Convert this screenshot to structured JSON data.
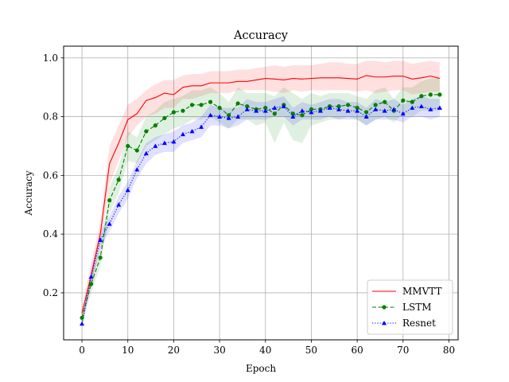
{
  "chart_data": {
    "type": "line",
    "title": "Accuracy",
    "xlabel": "Epoch",
    "ylabel": "Accuracy",
    "xlim": [
      -4,
      82
    ],
    "ylim": [
      0.04,
      1.04
    ],
    "xticks": [
      0,
      10,
      20,
      30,
      40,
      50,
      60,
      70,
      80
    ],
    "yticks": [
      0.2,
      0.4,
      0.6,
      0.8,
      1.0
    ],
    "xtick_labels": [
      "0",
      "10",
      "20",
      "30",
      "40",
      "50",
      "60",
      "70",
      "80"
    ],
    "ytick_labels": [
      "0.2",
      "0.4",
      "0.6",
      "0.8",
      "1.0"
    ],
    "grid": true,
    "legend_position": "lower-right",
    "x": [
      0,
      2,
      4,
      6,
      8,
      10,
      12,
      14,
      16,
      18,
      20,
      22,
      24,
      26,
      28,
      30,
      32,
      34,
      36,
      38,
      40,
      42,
      44,
      46,
      48,
      50,
      52,
      54,
      56,
      58,
      60,
      62,
      64,
      66,
      68,
      70,
      72,
      74,
      76,
      78
    ],
    "series": [
      {
        "name": "MMVTT",
        "color": "#ff0000",
        "linestyle": "solid",
        "marker": "none",
        "values": [
          0.13,
          0.26,
          0.4,
          0.64,
          0.71,
          0.79,
          0.81,
          0.855,
          0.865,
          0.88,
          0.875,
          0.9,
          0.905,
          0.905,
          0.915,
          0.915,
          0.915,
          0.92,
          0.92,
          0.925,
          0.93,
          0.928,
          0.925,
          0.93,
          0.928,
          0.93,
          0.932,
          0.932,
          0.932,
          0.93,
          0.928,
          0.94,
          0.935,
          0.935,
          0.938,
          0.938,
          0.928,
          0.932,
          0.938,
          0.93
        ],
        "lower": [
          0.11,
          0.22,
          0.36,
          0.57,
          0.65,
          0.73,
          0.77,
          0.8,
          0.81,
          0.83,
          0.83,
          0.86,
          0.86,
          0.87,
          0.88,
          0.88,
          0.88,
          0.89,
          0.89,
          0.89,
          0.89,
          0.885,
          0.88,
          0.89,
          0.885,
          0.89,
          0.89,
          0.89,
          0.89,
          0.89,
          0.885,
          0.89,
          0.88,
          0.885,
          0.89,
          0.89,
          0.875,
          0.88,
          0.885,
          0.885
        ],
        "upper": [
          0.15,
          0.3,
          0.44,
          0.7,
          0.77,
          0.84,
          0.86,
          0.89,
          0.91,
          0.925,
          0.925,
          0.94,
          0.945,
          0.945,
          0.955,
          0.955,
          0.955,
          0.96,
          0.96,
          0.965,
          0.97,
          0.975,
          0.97,
          0.975,
          0.975,
          0.975,
          0.98,
          0.985,
          0.985,
          0.98,
          0.98,
          0.99,
          0.99,
          0.985,
          0.99,
          0.99,
          0.98,
          0.985,
          0.99,
          0.985
        ]
      },
      {
        "name": "LSTM",
        "color": "#008000",
        "linestyle": "dashed",
        "marker": "circle",
        "values": [
          0.115,
          0.23,
          0.32,
          0.515,
          0.585,
          0.7,
          0.685,
          0.75,
          0.77,
          0.795,
          0.815,
          0.82,
          0.84,
          0.84,
          0.85,
          0.83,
          0.805,
          0.845,
          0.835,
          0.825,
          0.83,
          0.81,
          0.84,
          0.81,
          0.805,
          0.825,
          0.825,
          0.835,
          0.835,
          0.84,
          0.83,
          0.815,
          0.84,
          0.85,
          0.82,
          0.855,
          0.85,
          0.87,
          0.875,
          0.875
        ],
        "lower": [
          0.09,
          0.2,
          0.29,
          0.47,
          0.54,
          0.65,
          0.64,
          0.7,
          0.72,
          0.74,
          0.76,
          0.77,
          0.79,
          0.79,
          0.8,
          0.78,
          0.76,
          0.79,
          0.79,
          0.77,
          0.78,
          0.71,
          0.78,
          0.72,
          0.71,
          0.77,
          0.78,
          0.79,
          0.79,
          0.8,
          0.79,
          0.77,
          0.79,
          0.8,
          0.78,
          0.81,
          0.8,
          0.82,
          0.82,
          0.82
        ],
        "upper": [
          0.14,
          0.26,
          0.35,
          0.56,
          0.63,
          0.75,
          0.73,
          0.8,
          0.82,
          0.85,
          0.86,
          0.87,
          0.89,
          0.89,
          0.9,
          0.88,
          0.85,
          0.9,
          0.88,
          0.88,
          0.88,
          0.87,
          0.9,
          0.88,
          0.86,
          0.88,
          0.87,
          0.88,
          0.88,
          0.88,
          0.87,
          0.86,
          0.89,
          0.9,
          0.86,
          0.9,
          0.9,
          0.92,
          0.93,
          0.93
        ]
      },
      {
        "name": "Resnet",
        "color": "#0000ff",
        "linestyle": "dotted",
        "marker": "triangle",
        "values": [
          0.095,
          0.255,
          0.38,
          0.435,
          0.5,
          0.55,
          0.62,
          0.675,
          0.7,
          0.71,
          0.715,
          0.74,
          0.75,
          0.765,
          0.805,
          0.8,
          0.795,
          0.8,
          0.825,
          0.82,
          0.82,
          0.83,
          0.835,
          0.8,
          0.82,
          0.815,
          0.82,
          0.83,
          0.825,
          0.82,
          0.82,
          0.8,
          0.825,
          0.82,
          0.825,
          0.81,
          0.83,
          0.835,
          0.825,
          0.83
        ],
        "lower": [
          0.08,
          0.23,
          0.35,
          0.41,
          0.47,
          0.52,
          0.59,
          0.64,
          0.67,
          0.68,
          0.68,
          0.71,
          0.72,
          0.73,
          0.77,
          0.77,
          0.76,
          0.77,
          0.79,
          0.79,
          0.79,
          0.8,
          0.8,
          0.77,
          0.79,
          0.79,
          0.79,
          0.8,
          0.79,
          0.79,
          0.79,
          0.77,
          0.79,
          0.79,
          0.79,
          0.78,
          0.8,
          0.8,
          0.79,
          0.8
        ],
        "upper": [
          0.11,
          0.28,
          0.41,
          0.46,
          0.53,
          0.58,
          0.65,
          0.71,
          0.73,
          0.74,
          0.75,
          0.77,
          0.78,
          0.8,
          0.84,
          0.83,
          0.83,
          0.83,
          0.86,
          0.85,
          0.85,
          0.86,
          0.87,
          0.83,
          0.85,
          0.84,
          0.85,
          0.86,
          0.86,
          0.85,
          0.85,
          0.83,
          0.86,
          0.85,
          0.86,
          0.84,
          0.86,
          0.87,
          0.86,
          0.86
        ]
      }
    ]
  }
}
